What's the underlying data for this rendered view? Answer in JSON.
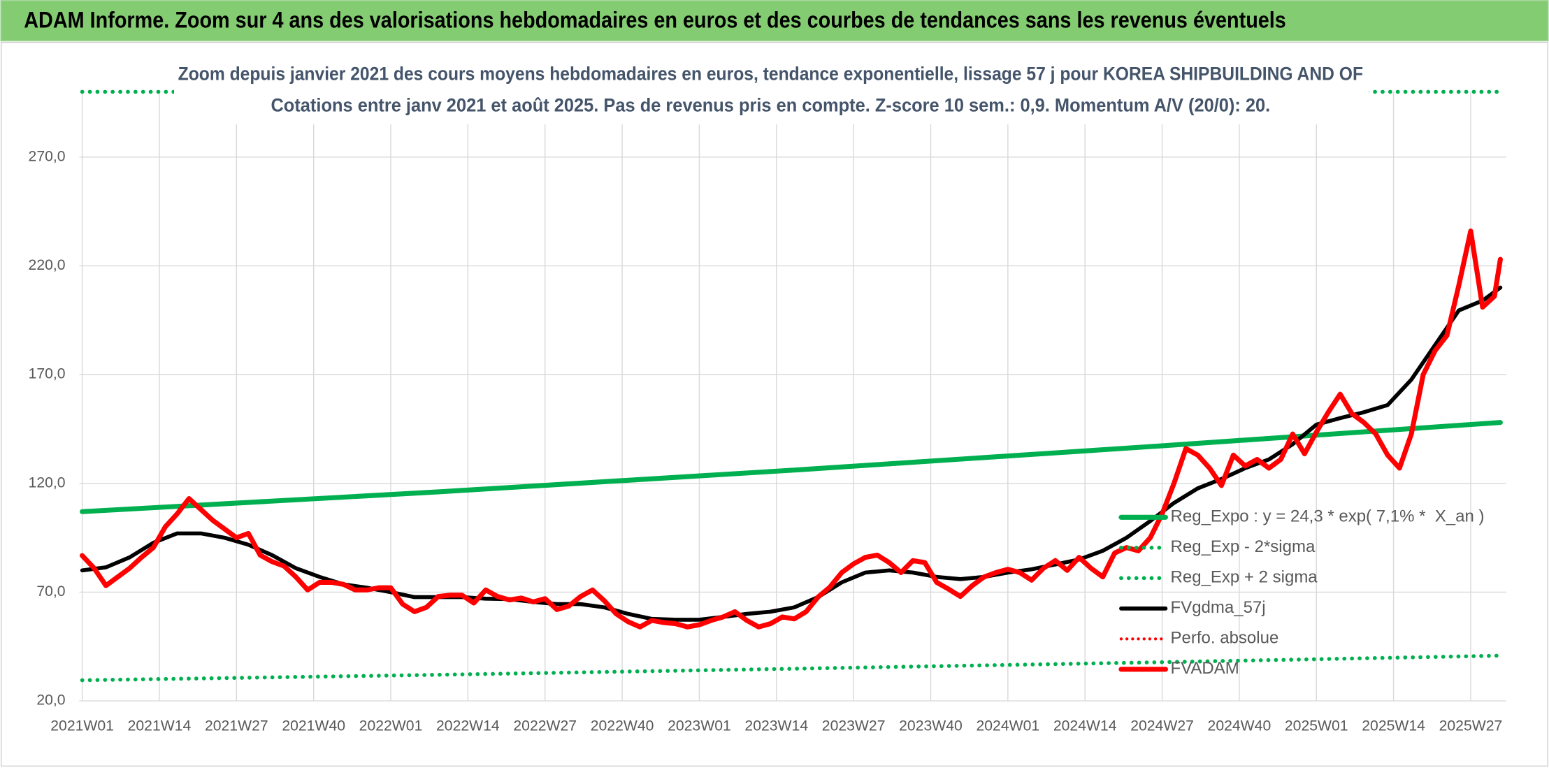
{
  "header": {
    "title": "ADAM Informe. Zoom sur 4 ans des valorisations hebdomadaires en euros et des courbes de tendances sans les revenus éventuels"
  },
  "chart_data": {
    "type": "line",
    "title": "Zoom depuis janvier 2021 des cours moyens hebdomadaires en euros, tendance exponentielle, lissage 57 j pour KOREA SHIPBUILDING AND OF",
    "subtitle": "Cotations entre janv 2021 et août 2025. Pas de revenus pris en compte. Z-score 10 sem.: 0,9. Momentum A/V (20/0): 20.",
    "xlim": [
      -0.5,
      240
    ],
    "xticks": [
      {
        "value": 0,
        "label": "2021W01"
      },
      {
        "value": 13,
        "label": "2021W14"
      },
      {
        "value": 26,
        "label": "2021W27"
      },
      {
        "value": 39,
        "label": "2021W40"
      },
      {
        "value": 52,
        "label": "2022W01"
      },
      {
        "value": 65,
        "label": "2022W14"
      },
      {
        "value": 78,
        "label": "2022W27"
      },
      {
        "value": 91,
        "label": "2022W40"
      },
      {
        "value": 104,
        "label": "2023W01"
      },
      {
        "value": 117,
        "label": "2023W14"
      },
      {
        "value": 130,
        "label": "2023W27"
      },
      {
        "value": 143,
        "label": "2023W40"
      },
      {
        "value": 156,
        "label": "2024W01"
      },
      {
        "value": 169,
        "label": "2024W14"
      },
      {
        "value": 182,
        "label": "2024W27"
      },
      {
        "value": 195,
        "label": "2024W40"
      },
      {
        "value": 208,
        "label": "2025W01"
      },
      {
        "value": 221,
        "label": "2025W14"
      },
      {
        "value": 234,
        "label": "2025W27"
      }
    ],
    "ylim": [
      20,
      300
    ],
    "yticks": [
      {
        "value": 20,
        "label": "20,0"
      },
      {
        "value": 70,
        "label": "70,0"
      },
      {
        "value": 120,
        "label": "120,0"
      },
      {
        "value": 170,
        "label": "170,0"
      },
      {
        "value": 220,
        "label": "220,0"
      },
      {
        "value": 270,
        "label": "270,0"
      }
    ],
    "grid": true,
    "legend": "lower right",
    "series": [
      {
        "name": "Reg_Expo : y = 24,3 * exp( 7,1% *  X_an )",
        "color": "#00b050",
        "style": "solid",
        "width": 5,
        "x": [
          0,
          60,
          120,
          180,
          239
        ],
        "values": [
          107,
          116.1,
          126.1,
          136.9,
          148
        ]
      },
      {
        "name": "Reg_Exp - 2*sigma",
        "color": "#00b050",
        "style": "dotted",
        "width": 4,
        "x": [
          0,
          60,
          120,
          180,
          239
        ],
        "values": [
          29.5,
          32,
          34.8,
          37.7,
          40.8
        ]
      },
      {
        "name": "Reg_Exp + 2 sigma",
        "color": "#00b050",
        "style": "dotted",
        "width": 4,
        "x": [
          0,
          239
        ],
        "values": [
          300,
          300
        ]
      },
      {
        "name": "FVgdma_57j",
        "color": "#000000",
        "style": "solid",
        "width": 4,
        "x": [
          0,
          4,
          8,
          12,
          16,
          20,
          24,
          28,
          32,
          36,
          40,
          44,
          48,
          52,
          56,
          60,
          64,
          68,
          72,
          76,
          80,
          84,
          88,
          92,
          96,
          100,
          104,
          108,
          112,
          116,
          120,
          124,
          128,
          132,
          136,
          140,
          144,
          148,
          152,
          156,
          160,
          164,
          168,
          172,
          176,
          180,
          184,
          188,
          192,
          196,
          200,
          204,
          208,
          212,
          216,
          220,
          224,
          228,
          232,
          236,
          239
        ],
        "values": [
          80,
          81.4,
          86,
          92.7,
          97,
          97,
          95,
          91.8,
          87,
          81,
          77,
          73.6,
          72,
          70,
          67.7,
          67.7,
          67.7,
          67,
          66.8,
          65.5,
          64.5,
          64.5,
          63,
          60,
          57.7,
          57.3,
          57.3,
          58.6,
          60,
          61,
          63,
          67.7,
          74.5,
          79,
          80,
          79,
          77,
          76,
          77,
          79,
          80.5,
          82.7,
          85,
          89,
          95,
          102.7,
          111,
          117.7,
          122,
          127,
          131,
          138,
          147,
          150,
          152.7,
          156,
          167.7,
          183.6,
          199.5,
          204,
          210
        ]
      },
      {
        "name": "Perfo. absolue",
        "color": "#ff0000",
        "style": "dotted",
        "width": 3,
        "x": [],
        "values": []
      },
      {
        "name": "FVADAM",
        "color": "#ff0000",
        "style": "solid",
        "width": 5,
        "x": [
          0,
          2,
          4,
          6,
          8,
          10,
          12,
          14,
          16,
          18,
          20,
          22,
          24,
          26,
          28,
          30,
          32,
          34,
          36,
          38,
          40,
          42,
          44,
          46,
          48,
          50,
          52,
          54,
          56,
          58,
          60,
          62,
          64,
          66,
          68,
          70,
          72,
          74,
          76,
          78,
          80,
          82,
          84,
          86,
          88,
          90,
          92,
          94,
          96,
          98,
          100,
          102,
          104,
          106,
          108,
          110,
          112,
          114,
          116,
          118,
          120,
          122,
          124,
          126,
          128,
          130,
          132,
          134,
          136,
          138,
          140,
          142,
          144,
          146,
          148,
          150,
          152,
          154,
          156,
          158,
          160,
          162,
          164,
          166,
          168,
          170,
          172,
          174,
          176,
          178,
          180,
          182,
          184,
          186,
          188,
          190,
          192,
          194,
          196,
          198,
          200,
          202,
          204,
          206,
          208,
          210,
          212,
          214,
          216,
          218,
          220,
          222,
          224,
          226,
          228,
          230,
          232,
          234,
          236,
          238,
          239
        ],
        "values": [
          86.8,
          81,
          73,
          77,
          81,
          86,
          90.5,
          100,
          106,
          113,
          108,
          103,
          99,
          95,
          97,
          87,
          84,
          82,
          77,
          71,
          74.5,
          74.5,
          73.6,
          71,
          71,
          72,
          72,
          64.5,
          61,
          63,
          68,
          68.6,
          68.6,
          65,
          71,
          68,
          66.4,
          67.3,
          65.5,
          67,
          62,
          63.6,
          68,
          71,
          66,
          60,
          56.4,
          54,
          57,
          56,
          55.5,
          54,
          55,
          57,
          58.6,
          61,
          57,
          54,
          55.5,
          58.6,
          57.7,
          61,
          67.7,
          72.3,
          79,
          83,
          86,
          87,
          83.6,
          79,
          84.5,
          83.6,
          74.5,
          71.4,
          68,
          73,
          77,
          79,
          80.5,
          79,
          75.5,
          81,
          84.5,
          80,
          86,
          81,
          77,
          88,
          90.5,
          89,
          95,
          106,
          120,
          136,
          133,
          127,
          119,
          133,
          128,
          131,
          127,
          131,
          142.7,
          133.6,
          143.6,
          152.7,
          161,
          152,
          148,
          142.7,
          133,
          127,
          142.7,
          170,
          181,
          188,
          211,
          236,
          201,
          206,
          223
        ]
      }
    ]
  }
}
